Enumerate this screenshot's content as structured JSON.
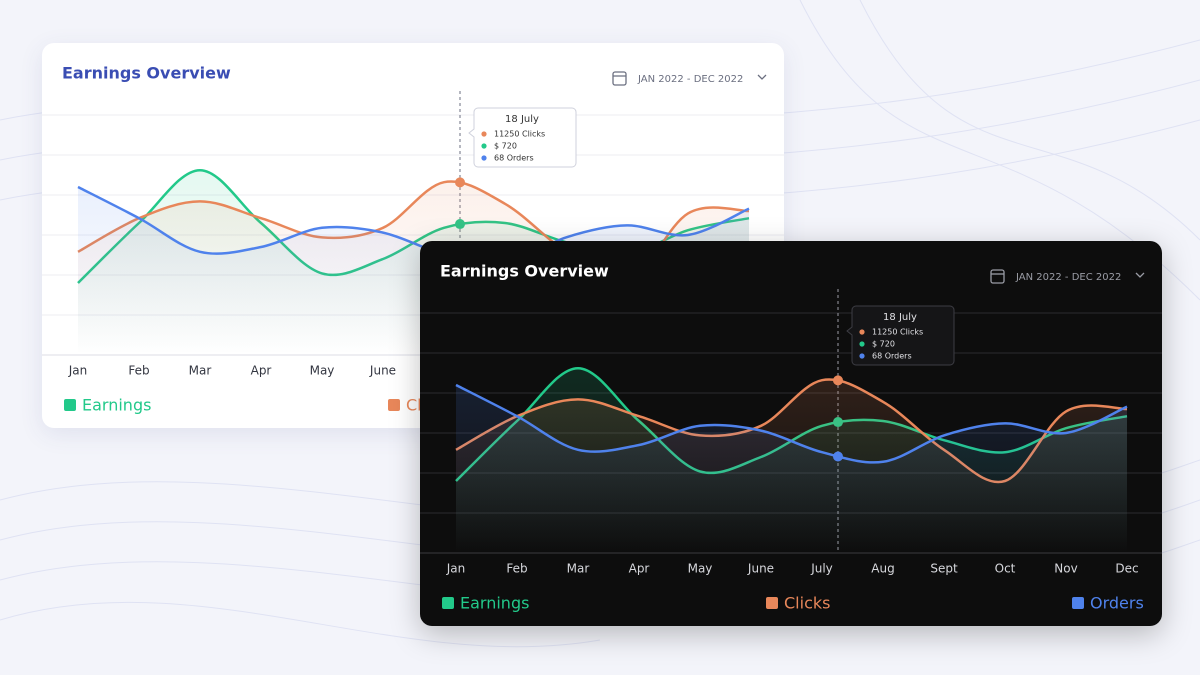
{
  "chart_data": {
    "type": "line",
    "title": "Earnings Overview",
    "date_range": "JAN 2022 - DEC 2022",
    "categories": [
      "Jan",
      "Feb",
      "Mar",
      "Apr",
      "May",
      "June",
      "July",
      "Aug",
      "Sept",
      "Oct",
      "Nov",
      "Dec"
    ],
    "ylim": [
      0,
      100
    ],
    "grid": true,
    "series": [
      {
        "name": "Earnings",
        "color": "#22c98a",
        "values": [
          30,
          55,
          77,
          55,
          34,
          40,
          53,
          55,
          47,
          42,
          52,
          57
        ]
      },
      {
        "name": "Clicks",
        "color": "#e8875a",
        "values": [
          43,
          57,
          64,
          57,
          49,
          53,
          72,
          63,
          43,
          30,
          59,
          60
        ]
      },
      {
        "name": "Orders",
        "color": "#4f82ec",
        "values": [
          70,
          57,
          43,
          45,
          53,
          51,
          42,
          38,
          49,
          54,
          50,
          61
        ]
      }
    ],
    "tooltip": {
      "title": "18 July",
      "items": [
        "11250 Clicks",
        "$ 720",
        "68 Orders"
      ]
    }
  }
}
